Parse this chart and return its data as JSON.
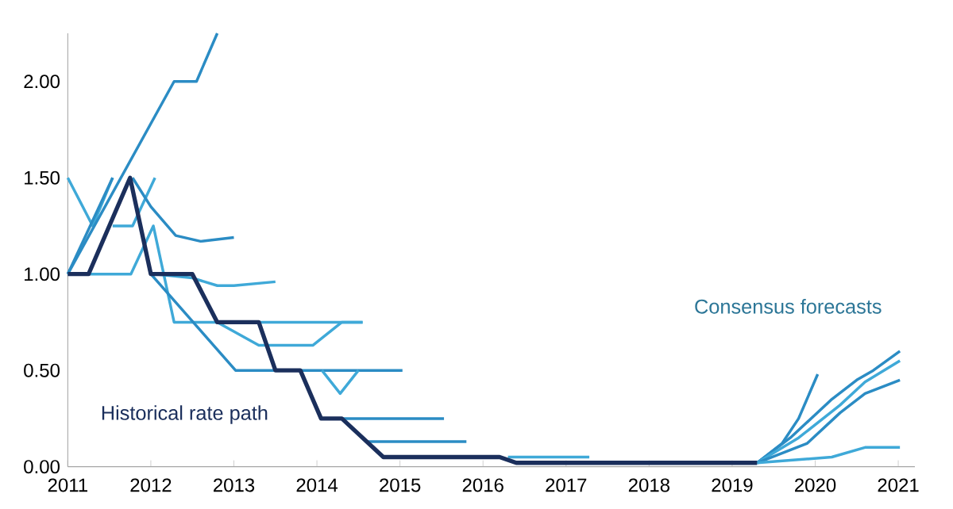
{
  "chart_data": {
    "type": "line",
    "xlim": [
      2011,
      2021.2
    ],
    "ylim": [
      0,
      2.25
    ],
    "xticks": [
      2011,
      2012,
      2013,
      2014,
      2015,
      2016,
      2017,
      2018,
      2019,
      2020,
      2021
    ],
    "yticks": [
      {
        "value": 0,
        "label": "0.00"
      },
      {
        "value": 0.5,
        "label": "0.50"
      },
      {
        "value": 1,
        "label": "1.00"
      },
      {
        "value": 1.5,
        "label": "1.50"
      },
      {
        "value": 2,
        "label": "2.00"
      }
    ],
    "grid": false,
    "legend": false,
    "marker": "none",
    "line_style": "solid",
    "series": [
      {
        "color": "#3fa9d8",
        "x": [
          2011,
          2011.3,
          2011.54
        ],
        "values": [
          1.5,
          1.25,
          1.5
        ]
      },
      {
        "color": "#2b8cc4",
        "x": [
          2011,
          2012.28,
          2012.55,
          2012.8
        ],
        "values": [
          1.0,
          2.0,
          2.0,
          2.25
        ]
      },
      {
        "color": "#2b8cc4",
        "x": [
          2011,
          2011.54
        ],
        "values": [
          1.0,
          1.5
        ]
      },
      {
        "color": "#3fa9d8",
        "x": [
          2011.54,
          2011.78,
          2012.05
        ],
        "values": [
          1.25,
          1.25,
          1.5
        ]
      },
      {
        "color": "#3fa9d8",
        "x": [
          2011,
          2011.76,
          2012.03,
          2012.28,
          2014.55
        ],
        "values": [
          1.0,
          1.0,
          1.25,
          0.75,
          0.75
        ]
      },
      {
        "color": "#2b8cc4",
        "x": [
          2011.78,
          2012.0,
          2012.3,
          2012.6,
          2013.0
        ],
        "values": [
          1.5,
          1.35,
          1.2,
          1.17,
          1.19
        ]
      },
      {
        "color": "#3fa9d8",
        "x": [
          2012.05,
          2012.5,
          2012.8,
          2013.0,
          2013.5
        ],
        "values": [
          1.0,
          0.98,
          0.94,
          0.94,
          0.96
        ]
      },
      {
        "color": "#2b8cc4",
        "x": [
          2012.0,
          2013.02,
          2015.03
        ],
        "values": [
          1.0,
          0.5,
          0.5
        ]
      },
      {
        "color": "#3fa9d8",
        "x": [
          2012.8,
          2013.3,
          2013.95,
          2014.3,
          2014.55
        ],
        "values": [
          0.75,
          0.63,
          0.63,
          0.75,
          0.75
        ]
      },
      {
        "color": "#3fa9d8",
        "x": [
          2014.06,
          2014.28,
          2014.5
        ],
        "values": [
          0.5,
          0.38,
          0.5
        ]
      },
      {
        "color": "#2b8cc4",
        "x": [
          2014.3,
          2015.53
        ],
        "values": [
          0.25,
          0.25
        ]
      },
      {
        "color": "#2b8cc4",
        "x": [
          2014.6,
          2015.8
        ],
        "values": [
          0.13,
          0.13
        ]
      },
      {
        "color": "#3fa9d8",
        "x": [
          2016.3,
          2017.28
        ],
        "values": [
          0.05,
          0.05
        ]
      },
      {
        "color": "#2b8cc4",
        "x": [
          2019.3,
          2019.6,
          2019.8,
          2020.03
        ],
        "values": [
          0.02,
          0.12,
          0.25,
          0.48
        ]
      },
      {
        "color": "#2b8cc4",
        "x": [
          2019.3,
          2019.7,
          2020.2,
          2020.5,
          2020.7,
          2021.02
        ],
        "values": [
          0.02,
          0.15,
          0.35,
          0.45,
          0.5,
          0.6
        ]
      },
      {
        "color": "#3fa9d8",
        "x": [
          2019.3,
          2019.8,
          2020.3,
          2020.6,
          2021.02
        ],
        "values": [
          0.02,
          0.15,
          0.32,
          0.44,
          0.55
        ]
      },
      {
        "color": "#2b8cc4",
        "x": [
          2019.3,
          2019.9,
          2020.3,
          2020.6,
          2021.02
        ],
        "values": [
          0.02,
          0.12,
          0.28,
          0.38,
          0.45
        ]
      },
      {
        "color": "#3fa9d8",
        "x": [
          2019.3,
          2020.2,
          2020.6,
          2021.02
        ],
        "values": [
          0.02,
          0.05,
          0.1,
          0.1
        ]
      },
      {
        "name": "Historical rate path",
        "color": "#1b2f5c",
        "x": [
          2011,
          2011.25,
          2011.75,
          2012.0,
          2012.5,
          2012.8,
          2013.3,
          2013.5,
          2013.8,
          2014.05,
          2014.3,
          2014.8,
          2016.2,
          2016.4,
          2019.3
        ],
        "values": [
          1.0,
          1.0,
          1.5,
          1.0,
          1.0,
          0.75,
          0.75,
          0.5,
          0.5,
          0.25,
          0.25,
          0.05,
          0.05,
          0.02,
          0.02
        ]
      }
    ],
    "annotations": [
      "Consensus forecasts"
    ]
  }
}
